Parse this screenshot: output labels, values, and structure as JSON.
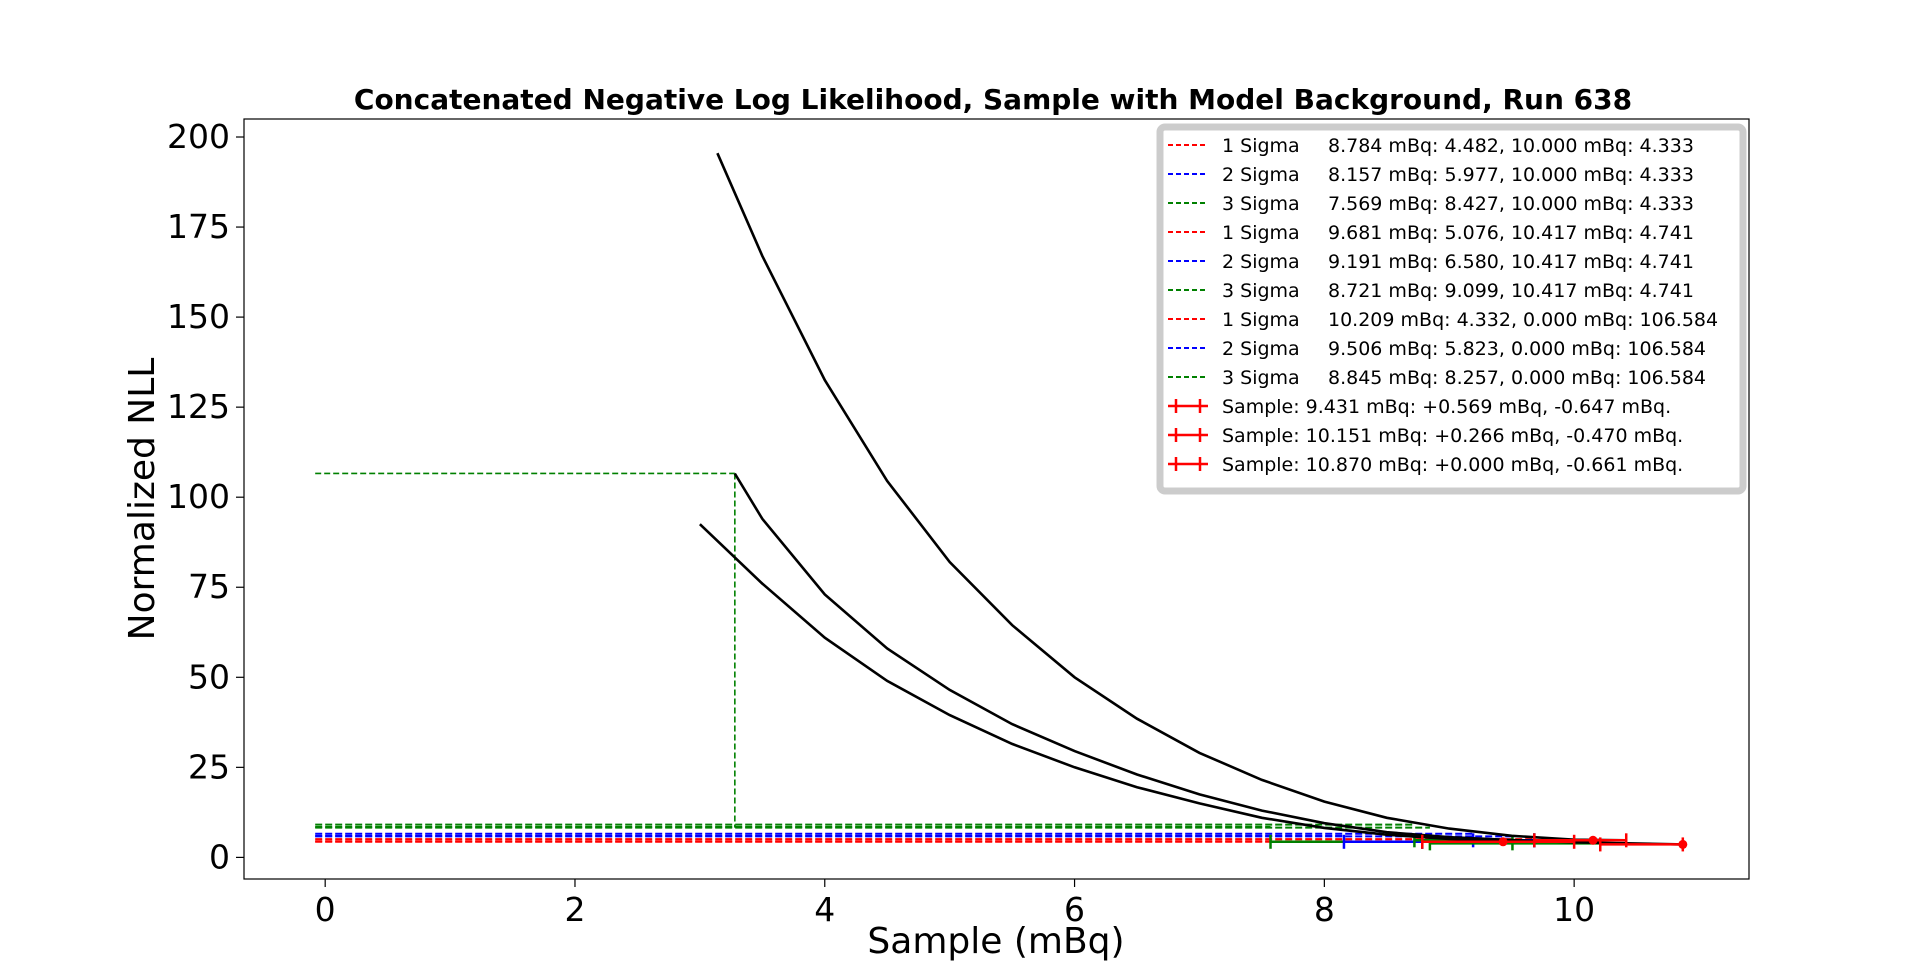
{
  "chart_data": {
    "type": "line",
    "title": "Concatenated Negative Log Likelihood, Sample with Model Background, Run 638",
    "xlabel": "Sample (mBq)",
    "ylabel": "Normalized NLL",
    "xlim": [
      -0.65,
      11.4
    ],
    "ylim": [
      -6,
      205
    ],
    "xticks": [
      0,
      2,
      4,
      6,
      8,
      10
    ],
    "yticks": [
      0,
      25,
      50,
      75,
      100,
      125,
      150,
      175,
      200
    ],
    "grid": false,
    "legend_position": "upper right",
    "curves": [
      {
        "color": "#000000",
        "x": [
          3.14,
          3.5,
          4.0,
          4.5,
          5.0,
          5.5,
          6.0,
          6.5,
          7.0,
          7.5,
          8.0,
          8.5,
          9.0,
          9.5,
          10.0,
          10.417
        ],
        "y": [
          195.5,
          167.0,
          132.5,
          104.5,
          82.0,
          64.5,
          50.0,
          38.5,
          29.0,
          21.5,
          15.5,
          11.0,
          8.0,
          6.0,
          4.9,
          4.741
        ]
      },
      {
        "color": "#000000",
        "x": [
          3.28,
          3.5,
          4.0,
          4.5,
          5.0,
          5.5,
          6.0,
          6.5,
          7.0,
          7.5,
          8.0,
          8.5,
          9.0,
          9.5,
          10.0,
          10.87
        ],
        "y": [
          106.584,
          94.0,
          73.0,
          58.0,
          46.5,
          37.0,
          29.5,
          23.0,
          17.5,
          13.0,
          9.5,
          7.0,
          5.6,
          4.8,
          4.2,
          3.6
        ]
      },
      {
        "color": "#000000",
        "x": [
          3.0,
          3.5,
          4.0,
          4.5,
          5.0,
          5.5,
          6.0,
          6.5,
          7.0,
          7.5,
          8.0,
          8.5,
          9.0,
          9.5,
          10.0
        ],
        "y": [
          92.5,
          76.0,
          61.0,
          49.0,
          39.5,
          31.5,
          25.0,
          19.5,
          15.0,
          11.0,
          8.2,
          6.3,
          5.1,
          4.6,
          4.333
        ]
      }
    ],
    "sigma_lines": [
      {
        "label": "1 Sigma",
        "text": "8.784 mBq: 4.482, 10.000 mBq: 4.333",
        "color": "#ff0000",
        "x": 8.784,
        "y": 4.482
      },
      {
        "label": "2 Sigma",
        "text": "8.157 mBq: 5.977, 10.000 mBq: 4.333",
        "color": "#0000ff",
        "x": 8.157,
        "y": 5.977
      },
      {
        "label": "3 Sigma",
        "text": "7.569 mBq: 8.427, 10.000 mBq: 4.333",
        "color": "#008000",
        "x": 7.569,
        "y": 8.427
      },
      {
        "label": "1 Sigma",
        "text": "9.681 mBq: 5.076, 10.417 mBq: 4.741",
        "color": "#ff0000",
        "x": 9.681,
        "y": 5.076
      },
      {
        "label": "2 Sigma",
        "text": "9.191 mBq: 6.580, 10.417 mBq: 4.741",
        "color": "#0000ff",
        "x": 9.191,
        "y": 6.58
      },
      {
        "label": "3 Sigma",
        "text": "8.721 mBq: 9.099, 10.417 mBq: 4.741",
        "color": "#008000",
        "x": 8.721,
        "y": 9.099
      },
      {
        "label": "1 Sigma",
        "text": "10.209 mBq: 4.332, 0.000 mBq: 106.584",
        "color": "#ff0000",
        "x": 10.209,
        "y": 4.332
      },
      {
        "label": "2 Sigma",
        "text": "9.506 mBq: 5.823, 0.000 mBq: 106.584",
        "color": "#0000ff",
        "x": 9.506,
        "y": 5.823
      },
      {
        "label": "3 Sigma",
        "text": "8.845 mBq: 8.257, 0.000 mBq: 106.584",
        "color": "#008000",
        "x": 8.845,
        "y": 8.257
      }
    ],
    "boundary_line": {
      "color": "#008000",
      "x": 3.28,
      "y": 106.584
    },
    "samples": [
      {
        "text": "Sample: 9.431 mBq: +0.569 mBq, -0.647 mBq.",
        "color": "#ff0000",
        "x": 9.431,
        "y": 4.333,
        "plus": 0.569,
        "minus": 0.647
      },
      {
        "text": "Sample: 10.151 mBq: +0.266 mBq, -0.470 mBq.",
        "color": "#ff0000",
        "x": 10.151,
        "y": 4.741,
        "plus": 0.266,
        "minus": 0.47
      },
      {
        "text": "Sample: 10.870 mBq: +0.000 mBq, -0.661 mBq.",
        "color": "#ff0000",
        "x": 10.87,
        "y": 3.6,
        "plus": 0.0,
        "minus": 0.661
      }
    ]
  }
}
